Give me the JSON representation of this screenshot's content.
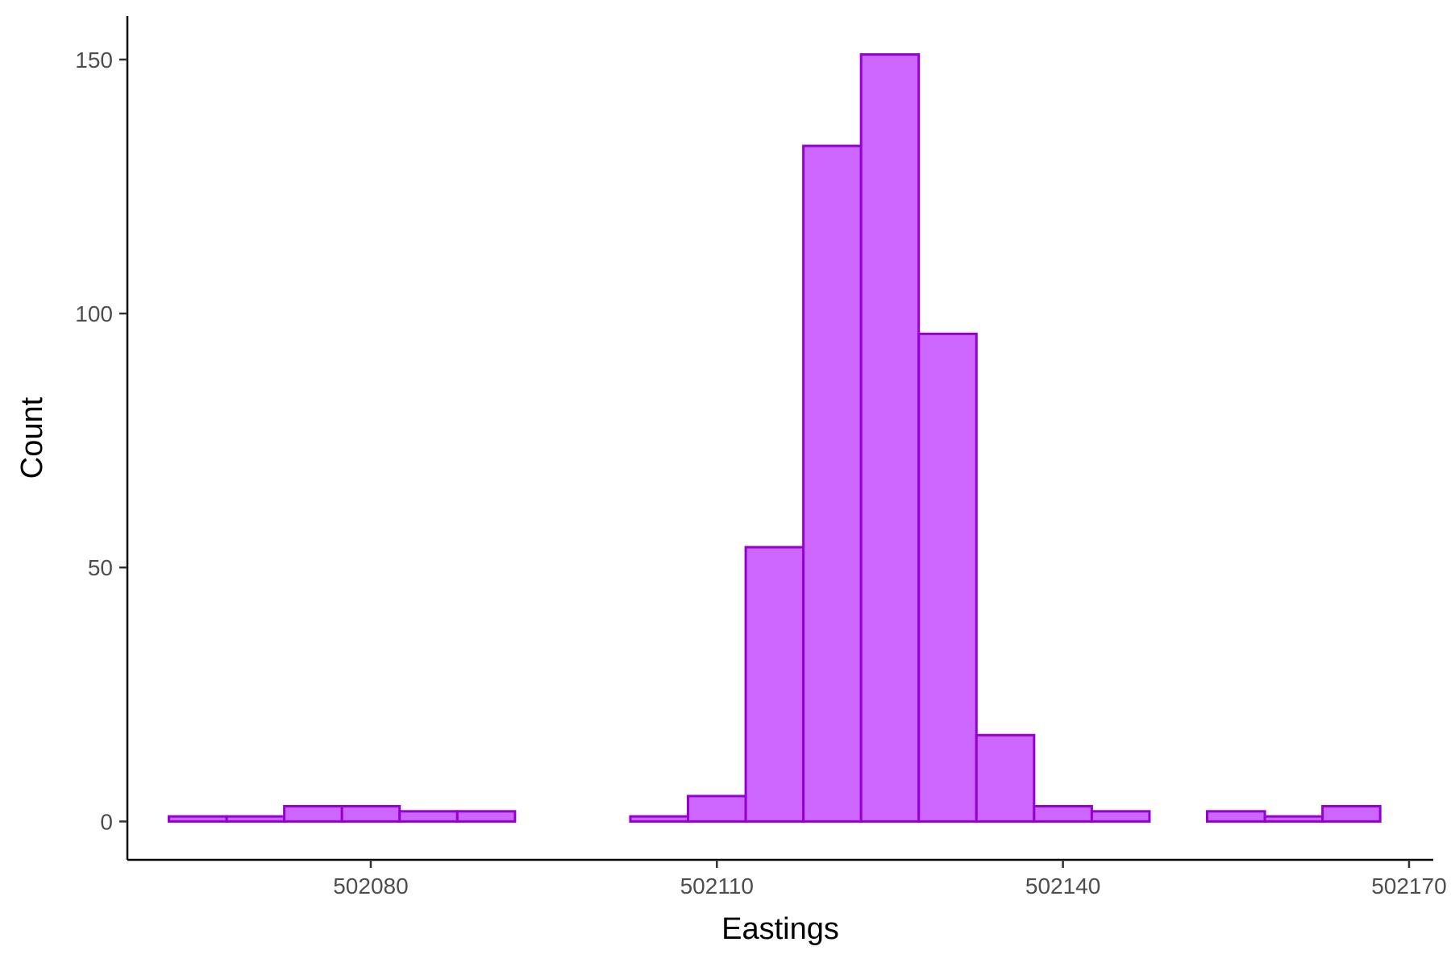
{
  "chart_data": {
    "type": "bar",
    "title": "",
    "xlabel": "Eastings",
    "ylabel": "Count",
    "bin_width": 5,
    "bin_centers": [
      502065,
      502070,
      502075,
      502080,
      502085,
      502090,
      502095,
      502100,
      502105,
      502110,
      502115,
      502120,
      502125,
      502130,
      502135,
      502140,
      502145,
      502150,
      502155,
      502160,
      502165
    ],
    "values": [
      1,
      1,
      3,
      3,
      2,
      2,
      0,
      0,
      1,
      5,
      54,
      133,
      151,
      96,
      17,
      3,
      2,
      0,
      2,
      1,
      3
    ],
    "xlim": [
      502058.9,
      502172.1
    ],
    "ylim": [
      -7.55,
      158.55
    ],
    "x_ticks": [
      502080,
      502110,
      502140,
      502170
    ],
    "x_tick_labels": [
      "502080",
      "502110",
      "502140",
      "502170"
    ],
    "y_ticks": [
      0,
      50,
      100,
      150
    ],
    "y_tick_labels": [
      "0",
      "50",
      "100",
      "150"
    ],
    "fill_color": "#CC66FF",
    "edge_color": "#9400D3",
    "grid": false,
    "legend": "none"
  }
}
